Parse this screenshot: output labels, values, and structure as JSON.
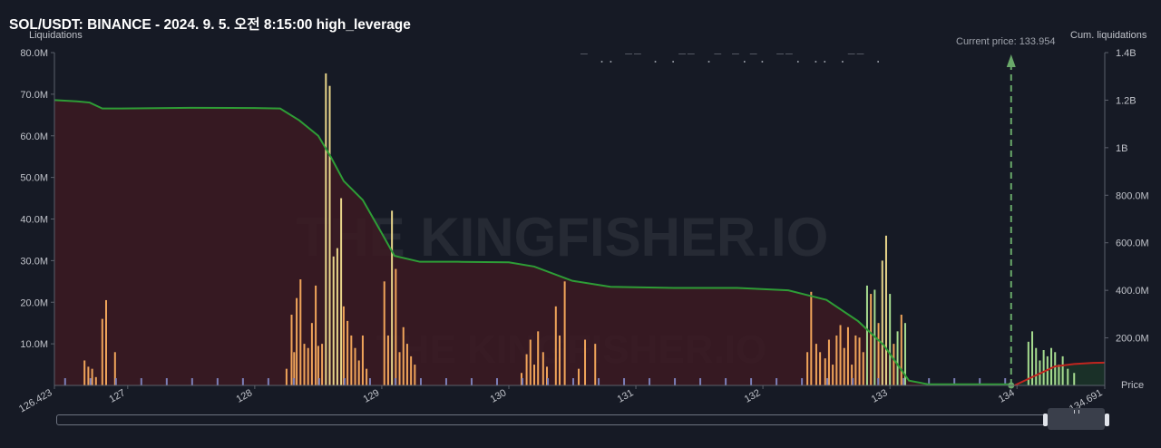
{
  "header": {
    "title": "SOL/USDT: BINANCE - 2024. 9. 5. 오전 8:15:00 high_leverage",
    "left_axis_caption": "Liquidations",
    "right_axis_caption": "Cum. liquidations",
    "price_axis_caption": "Price",
    "current_price_label": "Current price: 133.954"
  },
  "colors": {
    "background": "#161a25",
    "short_liq_bar": "#f0a45a",
    "short_liq_bar_light": "#e8d58a",
    "long_liq_bar": "#a6dc8f",
    "small_bar": "#7b7fb8",
    "cum_short_line": "#2e9d36",
    "cum_long_line": "#c0251f",
    "cum_short_fill": "#3c1a22",
    "current_price_marker": "#6aa96a"
  },
  "watermark": "THE KINGFISHER.IO",
  "chart_data": {
    "type": "bar",
    "current_price": 133.954,
    "x_range": [
      126.423,
      134.691
    ],
    "xlim_labels": [
      "126.423",
      "134.691"
    ],
    "x_ticks": [
      "127",
      "128",
      "129",
      "130",
      "131",
      "132",
      "133",
      "134"
    ],
    "y_left_ticks": [
      "10.0M",
      "20.0M",
      "30.0M",
      "40.0M",
      "50.0M",
      "60.0M",
      "70.0M",
      "80.0M"
    ],
    "y_left_range": [
      0,
      80000000
    ],
    "y_right_ticks": [
      "200.0M",
      "400.0M",
      "600.0M",
      "800.0M",
      "1B",
      "1.2B",
      "1.4B"
    ],
    "y_right_range": [
      0,
      1400000000
    ],
    "series": [
      {
        "name": "Liquidations",
        "points": [
          [
            126.66,
            6000000
          ],
          [
            126.69,
            4500000
          ],
          [
            126.72,
            4000000
          ],
          [
            126.75,
            2000000
          ],
          [
            126.8,
            16000000
          ],
          [
            126.83,
            20500000
          ],
          [
            126.9,
            8000000
          ],
          [
            128.25,
            4000000
          ],
          [
            128.29,
            17000000
          ],
          [
            128.31,
            8000000
          ],
          [
            128.33,
            21000000
          ],
          [
            128.36,
            25500000
          ],
          [
            128.39,
            10000000
          ],
          [
            128.42,
            9000000
          ],
          [
            128.45,
            15000000
          ],
          [
            128.48,
            24000000
          ],
          [
            128.5,
            9500000
          ],
          [
            128.53,
            10000000
          ],
          [
            128.56,
            75000000
          ],
          [
            128.59,
            72000000
          ],
          [
            128.62,
            31000000
          ],
          [
            128.65,
            33000000
          ],
          [
            128.68,
            45000000
          ],
          [
            128.7,
            19000000
          ],
          [
            128.73,
            15500000
          ],
          [
            128.76,
            12000000
          ],
          [
            128.79,
            9000000
          ],
          [
            128.82,
            6000000
          ],
          [
            128.85,
            12000000
          ],
          [
            128.88,
            4000000
          ],
          [
            129.02,
            25000000
          ],
          [
            129.05,
            12000000
          ],
          [
            129.08,
            42000000
          ],
          [
            129.11,
            28000000
          ],
          [
            129.14,
            8000000
          ],
          [
            129.17,
            14000000
          ],
          [
            129.2,
            10000000
          ],
          [
            129.23,
            7000000
          ],
          [
            129.26,
            5000000
          ],
          [
            130.1,
            3000000
          ],
          [
            130.14,
            7500000
          ],
          [
            130.17,
            11000000
          ],
          [
            130.2,
            5000000
          ],
          [
            130.23,
            13000000
          ],
          [
            130.27,
            8000000
          ],
          [
            130.3,
            4500000
          ],
          [
            130.37,
            19000000
          ],
          [
            130.4,
            12000000
          ],
          [
            130.44,
            25000000
          ],
          [
            130.55,
            4000000
          ],
          [
            130.6,
            11000000
          ],
          [
            130.68,
            10000000
          ],
          [
            132.35,
            8000000
          ],
          [
            132.38,
            22500000
          ],
          [
            132.42,
            10000000
          ],
          [
            132.45,
            8000000
          ],
          [
            132.49,
            6500000
          ],
          [
            132.52,
            11000000
          ],
          [
            132.55,
            5000000
          ],
          [
            132.58,
            12000000
          ],
          [
            132.61,
            14500000
          ],
          [
            132.64,
            9000000
          ],
          [
            132.67,
            14000000
          ],
          [
            132.7,
            5000000
          ],
          [
            132.73,
            12000000
          ],
          [
            132.76,
            11500000
          ],
          [
            132.79,
            8000000
          ],
          [
            132.82,
            24000000
          ],
          [
            132.85,
            22000000
          ],
          [
            132.88,
            23000000
          ],
          [
            132.91,
            15000000
          ],
          [
            132.94,
            30000000
          ],
          [
            132.97,
            36000000
          ],
          [
            133.0,
            22000000
          ],
          [
            133.03,
            10000000
          ],
          [
            133.06,
            13000000
          ],
          [
            133.09,
            17000000
          ],
          [
            133.12,
            15000000
          ],
          [
            134.09,
            10500000
          ],
          [
            134.12,
            13000000
          ],
          [
            134.15,
            9000000
          ],
          [
            134.18,
            6000000
          ],
          [
            134.21,
            8500000
          ],
          [
            134.24,
            7000000
          ],
          [
            134.27,
            9000000
          ],
          [
            134.3,
            8000000
          ],
          [
            134.33,
            5000000
          ],
          [
            134.36,
            7000000
          ],
          [
            134.4,
            4000000
          ],
          [
            134.45,
            3000000
          ]
        ]
      },
      {
        "name": "Cum. short liquidations",
        "points": [
          [
            126.423,
            1200000000
          ],
          [
            126.6,
            1195000000
          ],
          [
            126.7,
            1190000000
          ],
          [
            126.8,
            1165000000
          ],
          [
            126.95,
            1165000000
          ],
          [
            127.5,
            1168000000
          ],
          [
            128.0,
            1167000000
          ],
          [
            128.2,
            1165000000
          ],
          [
            128.35,
            1115000000
          ],
          [
            128.5,
            1050000000
          ],
          [
            128.6,
            960000000
          ],
          [
            128.7,
            860000000
          ],
          [
            128.85,
            780000000
          ],
          [
            129.0,
            640000000
          ],
          [
            129.1,
            545000000
          ],
          [
            129.3,
            520000000
          ],
          [
            129.6,
            520000000
          ],
          [
            130.0,
            518000000
          ],
          [
            130.2,
            500000000
          ],
          [
            130.5,
            440000000
          ],
          [
            130.8,
            415000000
          ],
          [
            131.3,
            410000000
          ],
          [
            131.8,
            410000000
          ],
          [
            132.2,
            400000000
          ],
          [
            132.5,
            360000000
          ],
          [
            132.75,
            270000000
          ],
          [
            132.95,
            170000000
          ],
          [
            133.15,
            20000000
          ],
          [
            133.3,
            5000000
          ],
          [
            133.95,
            5000000
          ]
        ]
      },
      {
        "name": "Cum. long liquidations",
        "points": [
          [
            133.98,
            0
          ],
          [
            134.1,
            30000000
          ],
          [
            134.2,
            55000000
          ],
          [
            134.3,
            80000000
          ],
          [
            134.45,
            90000000
          ],
          [
            134.6,
            95000000
          ],
          [
            134.691,
            96000000
          ]
        ]
      }
    ],
    "legend": "none",
    "grid": false
  }
}
